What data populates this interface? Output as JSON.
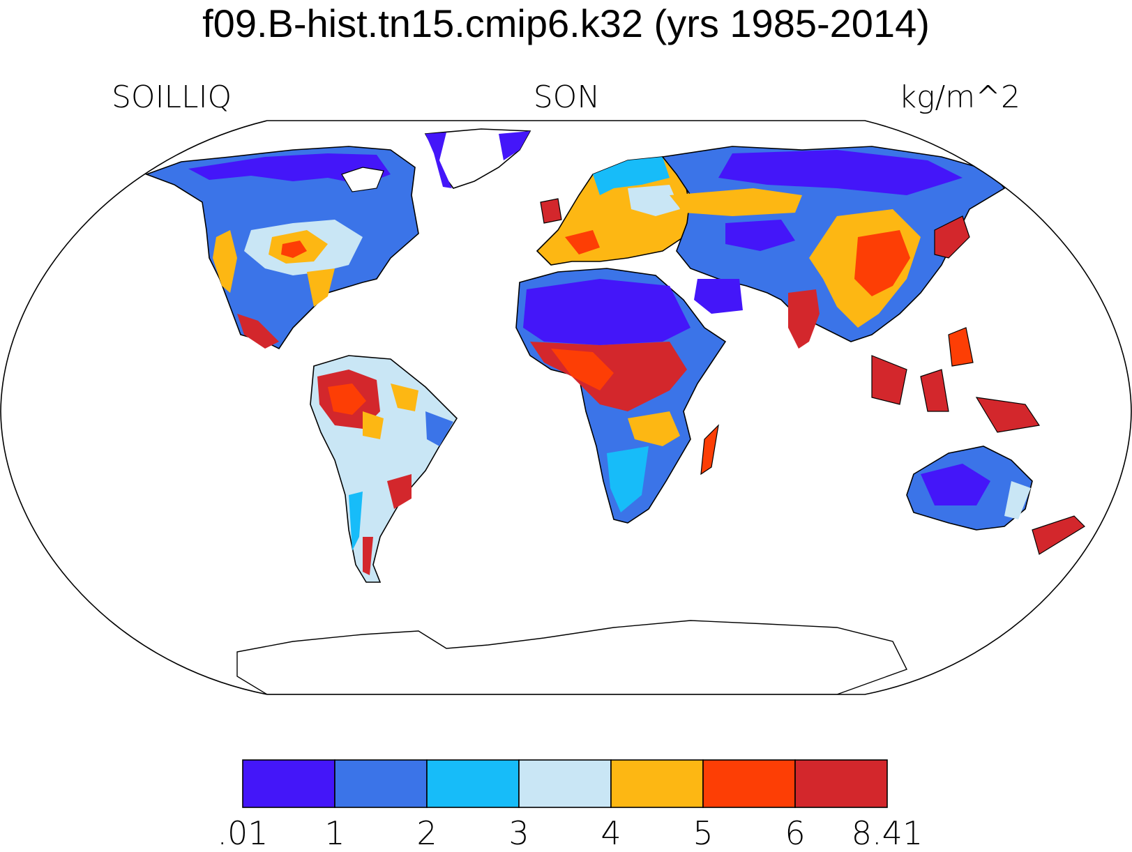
{
  "header": {
    "title": "f09.B-hist.tn15.cmip6.k32 (yrs 1985-2014)",
    "variable": "SOILLIQ",
    "season": "SON",
    "units": "kg/m^2"
  },
  "colorbar": {
    "colors": [
      "#4416f9",
      "#3b74e8",
      "#17bcf9",
      "#c9e6f5",
      "#fdb713",
      "#fd3e05",
      "#d3272c"
    ],
    "tick_labels": [
      ".01",
      "1",
      "2",
      "3",
      "4",
      "5",
      "6",
      "8.41"
    ]
  },
  "map": {
    "projection": "Robinson",
    "ocean_color": "#ffffff",
    "coastline_color": "#000000"
  }
}
